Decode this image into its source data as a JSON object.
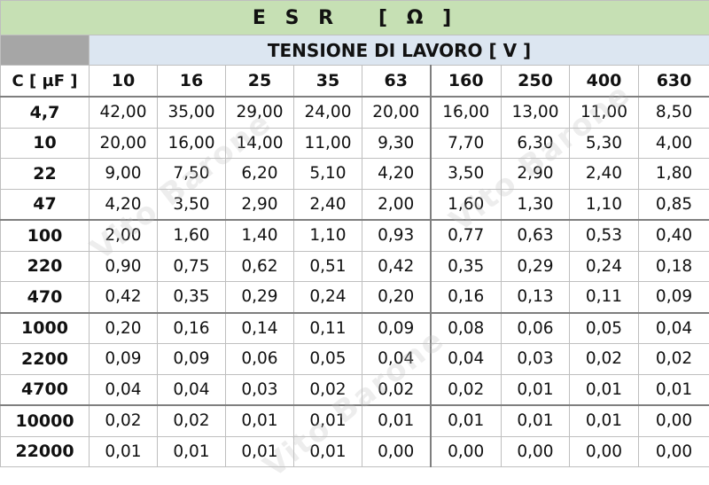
{
  "title": "E S R   [ Ω ]",
  "subheader": "TENSIONE DI LAVORO [ V ]",
  "capacitance_header": "C [ µF ]",
  "voltages": [
    "10",
    "16",
    "25",
    "35",
    "63",
    "160",
    "250",
    "400",
    "630"
  ],
  "rows": [
    {
      "cap": "4,7",
      "values": [
        "42,00",
        "35,00",
        "29,00",
        "24,00",
        "20,00",
        "16,00",
        "13,00",
        "11,00",
        "8,50"
      ]
    },
    {
      "cap": "10",
      "values": [
        "20,00",
        "16,00",
        "14,00",
        "11,00",
        "9,30",
        "7,70",
        "6,30",
        "5,30",
        "4,00"
      ]
    },
    {
      "cap": "22",
      "values": [
        "9,00",
        "7,50",
        "6,20",
        "5,10",
        "4,20",
        "3,50",
        "2,90",
        "2,40",
        "1,80"
      ]
    },
    {
      "cap": "47",
      "values": [
        "4,20",
        "3,50",
        "2,90",
        "2,40",
        "2,00",
        "1,60",
        "1,30",
        "1,10",
        "0,85"
      ]
    },
    {
      "cap": "100",
      "values": [
        "2,00",
        "1,60",
        "1,40",
        "1,10",
        "0,93",
        "0,77",
        "0,63",
        "0,53",
        "0,40"
      ]
    },
    {
      "cap": "220",
      "values": [
        "0,90",
        "0,75",
        "0,62",
        "0,51",
        "0,42",
        "0,35",
        "0,29",
        "0,24",
        "0,18"
      ]
    },
    {
      "cap": "470",
      "values": [
        "0,42",
        "0,35",
        "0,29",
        "0,24",
        "0,20",
        "0,16",
        "0,13",
        "0,11",
        "0,09"
      ]
    },
    {
      "cap": "1000",
      "values": [
        "0,20",
        "0,16",
        "0,14",
        "0,11",
        "0,09",
        "0,08",
        "0,06",
        "0,05",
        "0,04"
      ]
    },
    {
      "cap": "2200",
      "values": [
        "0,09",
        "0,09",
        "0,06",
        "0,05",
        "0,04",
        "0,04",
        "0,03",
        "0,02",
        "0,02"
      ]
    },
    {
      "cap": "4700",
      "values": [
        "0,04",
        "0,04",
        "0,03",
        "0,02",
        "0,02",
        "0,02",
        "0,01",
        "0,01",
        "0,01"
      ]
    },
    {
      "cap": "10000",
      "values": [
        "0,02",
        "0,02",
        "0,01",
        "0,01",
        "0,01",
        "0,01",
        "0,01",
        "0,01",
        "0,00"
      ]
    },
    {
      "cap": "22000",
      "values": [
        "0,01",
        "0,01",
        "0,01",
        "0,01",
        "0,00",
        "0,00",
        "0,00",
        "0,00",
        "0,00"
      ]
    }
  ],
  "watermark": "Vito Barone",
  "colors": {
    "title_bg": "#c6e0b4",
    "subheader_bg": "#dce6f1",
    "corner_bg": "#a6a6a6",
    "grid": "#bfbfbf"
  }
}
